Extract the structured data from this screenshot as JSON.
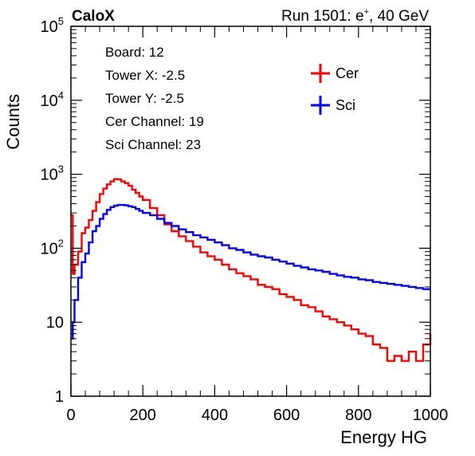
{
  "header": {
    "left_label": "CaloX",
    "run_prefix": "Run 1501: e",
    "run_sup": "+",
    "run_suffix": ", 40 GeV"
  },
  "info_box": {
    "lines": [
      "Board: 12",
      "Tower X: -2.5",
      "Tower Y: -2.5",
      "Cer Channel: 19",
      "Sci Channel: 23"
    ]
  },
  "legend": {
    "entries": [
      {
        "label": "Cer",
        "color": "#ff0000"
      },
      {
        "label": "Sci",
        "color": "#0000ff"
      }
    ]
  },
  "chart_data": {
    "type": "line",
    "style": "step-histogram",
    "xlabel": "Energy HG",
    "ylabel": "Counts",
    "xlim": [
      0,
      1000
    ],
    "ylim": [
      1,
      100000
    ],
    "yscale": "log",
    "x_ticks": [
      0,
      200,
      400,
      600,
      800,
      1000
    ],
    "x_tick_labels": [
      "0",
      "200",
      "400",
      "600",
      "800",
      "1000"
    ],
    "y_ticks": [
      1,
      10,
      100,
      1000,
      10000,
      100000
    ],
    "y_tick_labels": [
      {
        "base": "1",
        "exp": ""
      },
      {
        "base": "10",
        "exp": ""
      },
      {
        "base": "10",
        "exp": "2"
      },
      {
        "base": "10",
        "exp": "3"
      },
      {
        "base": "10",
        "exp": "4"
      },
      {
        "base": "10",
        "exp": "5"
      }
    ],
    "legend_position": "top-right",
    "series": [
      {
        "name": "Cer",
        "color": "#ff0000",
        "points": [
          [
            0,
            280
          ],
          [
            5,
            45
          ],
          [
            10,
            60
          ],
          [
            20,
            90
          ],
          [
            30,
            160
          ],
          [
            40,
            190
          ],
          [
            50,
            240
          ],
          [
            60,
            320
          ],
          [
            70,
            420
          ],
          [
            80,
            540
          ],
          [
            90,
            640
          ],
          [
            100,
            730
          ],
          [
            110,
            800
          ],
          [
            120,
            860
          ],
          [
            130,
            850
          ],
          [
            140,
            800
          ],
          [
            150,
            760
          ],
          [
            160,
            700
          ],
          [
            170,
            620
          ],
          [
            180,
            560
          ],
          [
            190,
            500
          ],
          [
            200,
            450
          ],
          [
            220,
            350
          ],
          [
            240,
            280
          ],
          [
            260,
            210
          ],
          [
            280,
            170
          ],
          [
            300,
            145
          ],
          [
            320,
            125
          ],
          [
            340,
            105
          ],
          [
            360,
            88
          ],
          [
            380,
            78
          ],
          [
            400,
            70
          ],
          [
            420,
            60
          ],
          [
            440,
            52
          ],
          [
            460,
            46
          ],
          [
            480,
            42
          ],
          [
            500,
            38
          ],
          [
            520,
            32
          ],
          [
            540,
            30
          ],
          [
            560,
            28
          ],
          [
            580,
            24
          ],
          [
            600,
            22
          ],
          [
            620,
            20
          ],
          [
            640,
            17
          ],
          [
            660,
            16
          ],
          [
            680,
            14
          ],
          [
            700,
            12
          ],
          [
            720,
            11
          ],
          [
            740,
            10
          ],
          [
            760,
            9
          ],
          [
            780,
            8
          ],
          [
            800,
            7
          ],
          [
            820,
            6.5
          ],
          [
            840,
            5
          ],
          [
            860,
            4.5
          ],
          [
            880,
            3
          ],
          [
            900,
            3.5
          ],
          [
            920,
            3
          ],
          [
            940,
            4
          ],
          [
            960,
            3
          ],
          [
            980,
            5
          ],
          [
            1000,
            7
          ]
        ]
      },
      {
        "name": "Sci",
        "color": "#0000ff",
        "points": [
          [
            0,
            6
          ],
          [
            5,
            10
          ],
          [
            10,
            20
          ],
          [
            20,
            40
          ],
          [
            30,
            65
          ],
          [
            40,
            85
          ],
          [
            50,
            120
          ],
          [
            60,
            170
          ],
          [
            70,
            200
          ],
          [
            80,
            250
          ],
          [
            90,
            290
          ],
          [
            100,
            330
          ],
          [
            110,
            360
          ],
          [
            120,
            375
          ],
          [
            130,
            385
          ],
          [
            140,
            385
          ],
          [
            150,
            380
          ],
          [
            160,
            370
          ],
          [
            170,
            360
          ],
          [
            180,
            340
          ],
          [
            190,
            320
          ],
          [
            200,
            300
          ],
          [
            220,
            280
          ],
          [
            240,
            250
          ],
          [
            260,
            220
          ],
          [
            280,
            200
          ],
          [
            300,
            180
          ],
          [
            320,
            165
          ],
          [
            340,
            150
          ],
          [
            360,
            140
          ],
          [
            380,
            130
          ],
          [
            400,
            120
          ],
          [
            420,
            110
          ],
          [
            440,
            100
          ],
          [
            460,
            95
          ],
          [
            480,
            88
          ],
          [
            500,
            82
          ],
          [
            520,
            78
          ],
          [
            540,
            75
          ],
          [
            560,
            70
          ],
          [
            580,
            66
          ],
          [
            600,
            62
          ],
          [
            620,
            58
          ],
          [
            640,
            55
          ],
          [
            660,
            52
          ],
          [
            680,
            50
          ],
          [
            700,
            48
          ],
          [
            720,
            45
          ],
          [
            740,
            43
          ],
          [
            760,
            41
          ],
          [
            780,
            40
          ],
          [
            800,
            38
          ],
          [
            820,
            37
          ],
          [
            840,
            35
          ],
          [
            860,
            34
          ],
          [
            880,
            33
          ],
          [
            900,
            32
          ],
          [
            920,
            31
          ],
          [
            940,
            30
          ],
          [
            960,
            29
          ],
          [
            980,
            28
          ],
          [
            1000,
            28
          ]
        ]
      }
    ]
  }
}
